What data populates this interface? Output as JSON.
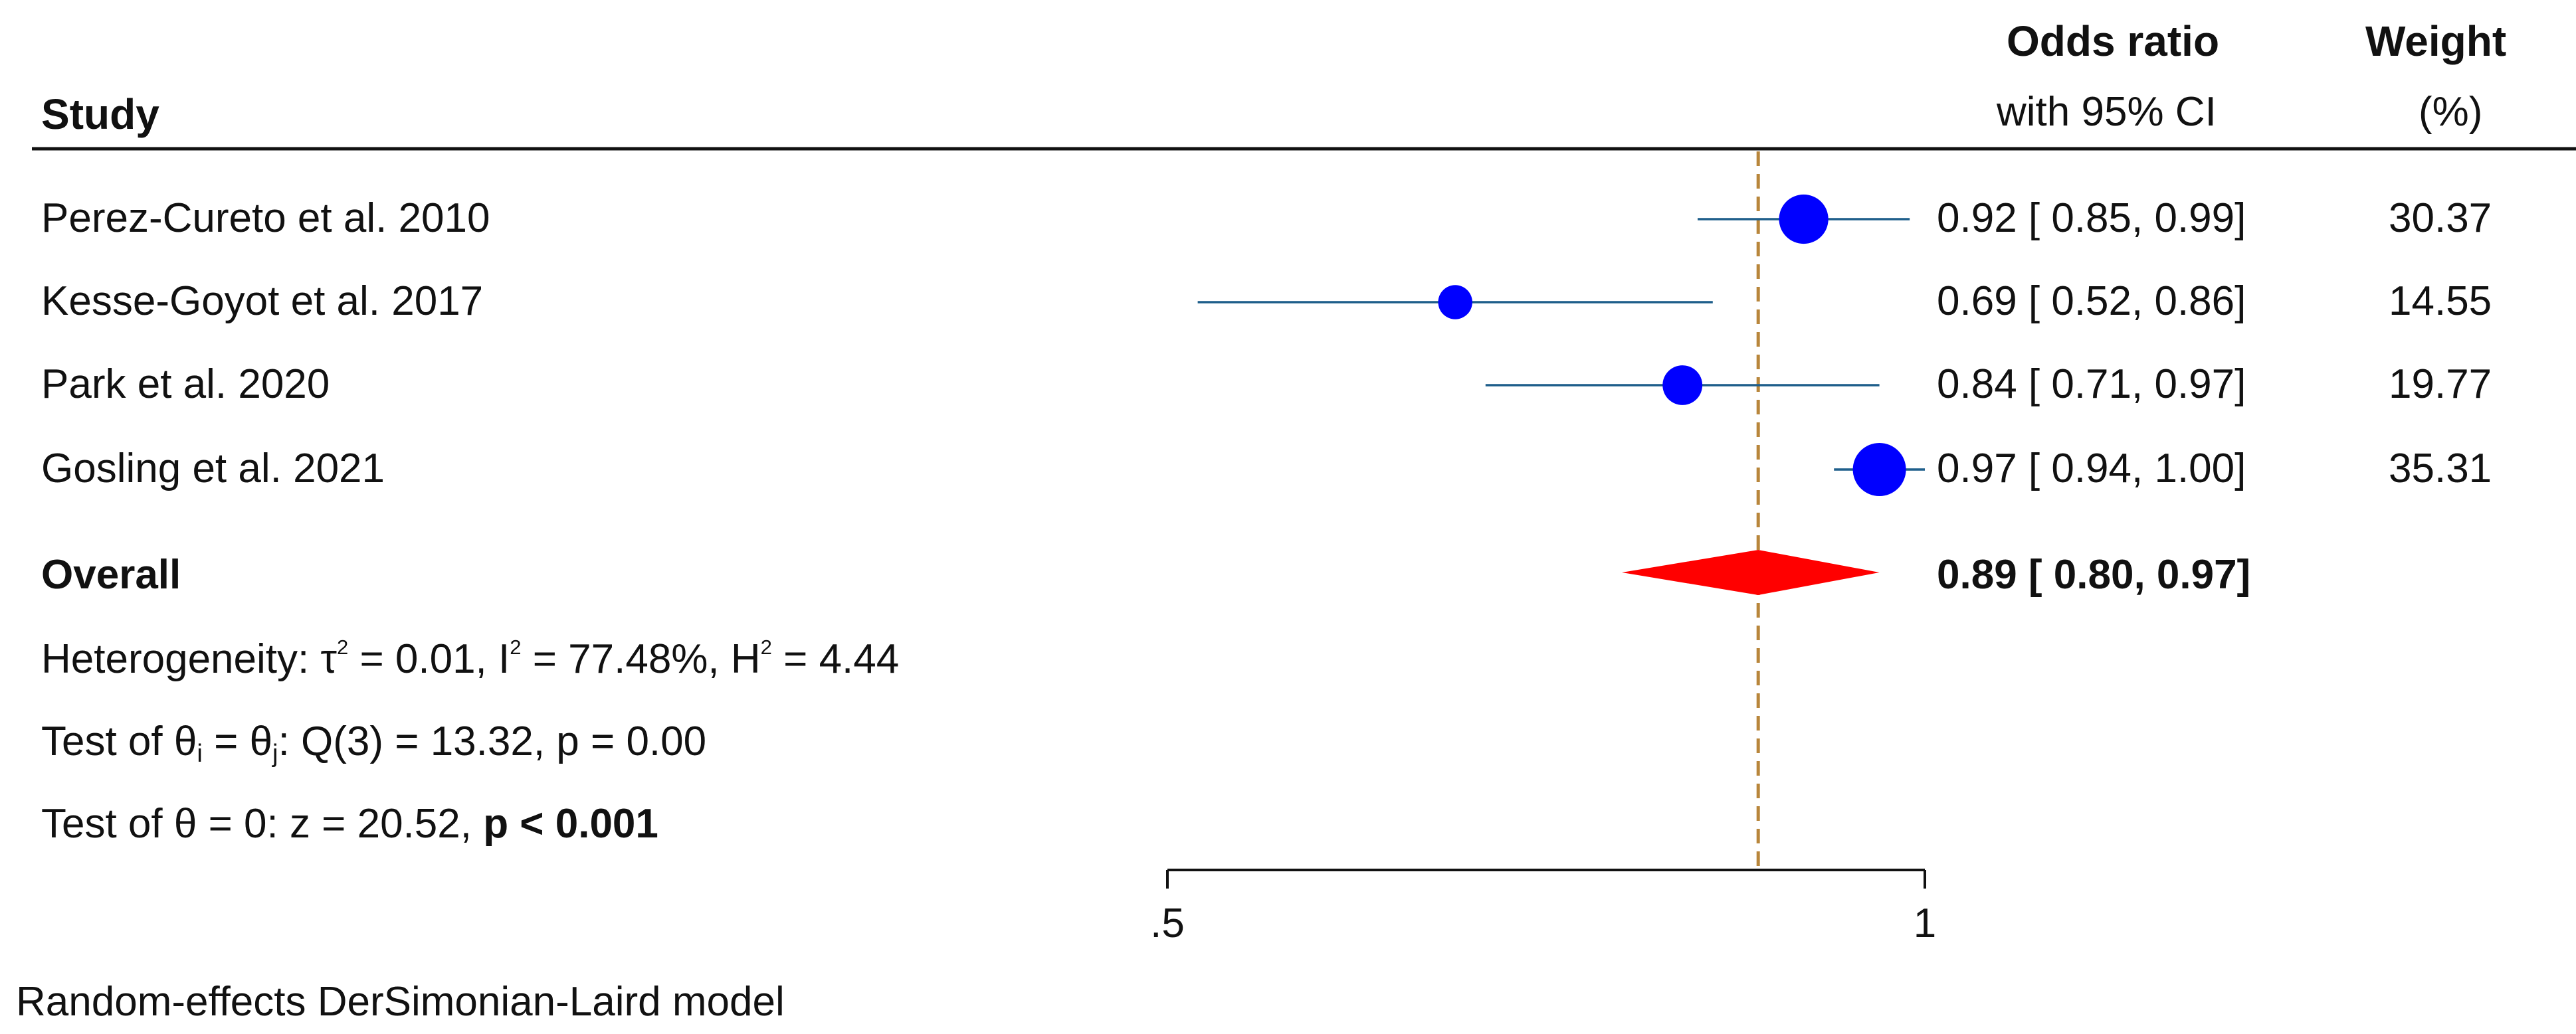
{
  "header": {
    "study": "Study",
    "or_line1": "Odds ratio",
    "or_line2": "with 95% CI",
    "weight_line1": "Weight",
    "weight_line2": "(%)"
  },
  "chart_data": {
    "type": "forest",
    "x_ticks": [
      {
        "value": 0.5,
        "label": ".5"
      },
      {
        "value": 1,
        "label": "1"
      }
    ],
    "x_range": [
      0.4,
      1.1
    ],
    "reference_value": 0.89,
    "studies": [
      {
        "name": "Perez-Cureto et al. 2010",
        "or": 0.92,
        "lo": 0.85,
        "hi": 0.99,
        "ci_text": "0.92 [ 0.85,  0.99]",
        "weight": "30.37",
        "w": 30.37
      },
      {
        "name": "Kesse-Goyot et al. 2017",
        "or": 0.69,
        "lo": 0.52,
        "hi": 0.86,
        "ci_text": "0.69 [ 0.52,  0.86]",
        "weight": "14.55",
        "w": 14.55
      },
      {
        "name": "Park et al. 2020",
        "or": 0.84,
        "lo": 0.71,
        "hi": 0.97,
        "ci_text": "0.84 [ 0.71,  0.97]",
        "weight": "19.77",
        "w": 19.77
      },
      {
        "name": "Gosling et al. 2021",
        "or": 0.97,
        "lo": 0.94,
        "hi": 1.0,
        "ci_text": "0.97 [ 0.94,  1.00]",
        "weight": "35.31",
        "w": 35.31
      }
    ],
    "overall": {
      "label": "Overall",
      "or": 0.89,
      "lo": 0.8,
      "hi": 0.97,
      "ci_text": "0.89 [ 0.80,  0.97]"
    },
    "heterogeneity": {
      "prefix": "Heterogeneity: τ",
      "tau2": " = 0.01, I",
      "i2": " = 77.48%, H",
      "h2": " = 4.44"
    },
    "test_q": {
      "prefix": "Test of θ",
      "i": "i",
      "mid": " = θ",
      "j": "j",
      "rest": ": Q(3) = 13.32, p = 0.00"
    },
    "test_z": {
      "text": "Test of θ = 0: z = 20.52, ",
      "bold": "p < 0.001"
    },
    "footnote": "Random-effects DerSimonian-Laird model",
    "colors": {
      "marker": "#0000ff",
      "ci_line": "#1f5f8b",
      "diamond": "#ff0000",
      "ref_line": "#b8863b",
      "axis": "#111111"
    }
  }
}
